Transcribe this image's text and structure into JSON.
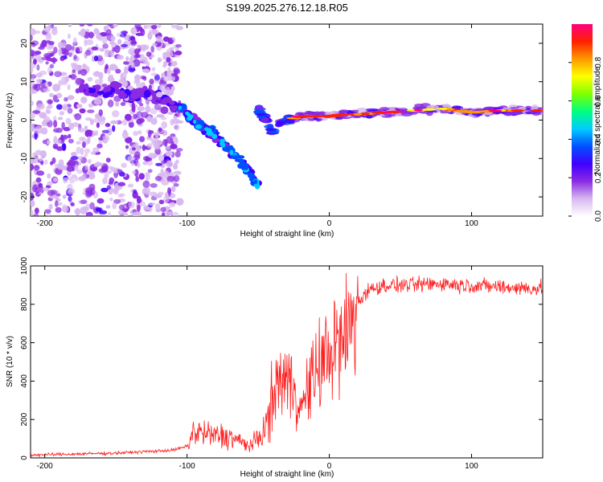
{
  "page_title": "S199.2025.276.12.18.R05",
  "chart_data": [
    {
      "type": "heatmap",
      "title": "S199.2025.276.12.18.R05",
      "xlabel": "Height of straight line (km)",
      "ylabel": "Frequency (Hz)",
      "xlim": [
        -210,
        150
      ],
      "ylim": [
        -25,
        25
      ],
      "xticks": [
        -200,
        -100,
        0,
        100
      ],
      "xtick_labels": [
        "-200",
        "-100",
        "0",
        "100"
      ],
      "yticks": [
        -20,
        -10,
        0,
        10,
        20
      ],
      "ytick_labels": [
        "-20",
        "-10",
        "0",
        "10",
        "20"
      ],
      "colorbar": {
        "label": "Normalized spectral amplitude",
        "range": [
          0,
          1
        ],
        "ticks": [
          0.0,
          0.2,
          0.4,
          0.6,
          0.8
        ],
        "tick_labels": [
          "0.0",
          "0.2",
          "0.4",
          "0.6",
          "0.8"
        ],
        "colormap": [
          "#ffffff",
          "#d8b8f0",
          "#8a2be2",
          "#4000ff",
          "#0050ff",
          "#00ccff",
          "#00ff80",
          "#80ff00",
          "#ffff00",
          "#ff9900",
          "#ff2000",
          "#ff0080"
        ]
      },
      "ridge": {
        "description_free_track": true,
        "x": [
          -175,
          -160,
          -150,
          -140,
          -130,
          -120,
          -110,
          -100,
          -95,
          -90,
          -85,
          -80,
          -75,
          -70,
          -65,
          -60,
          -55,
          -50
        ],
        "y": [
          8,
          7,
          8,
          6,
          7,
          6,
          4,
          2,
          0,
          -2,
          -3,
          -4,
          -6,
          -8,
          -10,
          -12,
          -14,
          -17
        ]
      },
      "secondary_track": {
        "x": [
          -50,
          -45,
          -40,
          -35,
          -30,
          -25,
          -20,
          -10,
          0,
          10,
          20,
          40,
          60,
          80,
          100,
          120,
          150
        ],
        "y": [
          3,
          0,
          -3,
          -1,
          0,
          0.5,
          1,
          1,
          1,
          1.5,
          1.5,
          2,
          2.5,
          3,
          2,
          2.5,
          2.5
        ]
      }
    },
    {
      "type": "line",
      "xlabel": "Height of straight line (km)",
      "ylabel": "SNR (10 * v/v)",
      "xlim": [
        -210,
        150
      ],
      "ylim": [
        0,
        1000
      ],
      "xticks": [
        -200,
        -100,
        0,
        100
      ],
      "xtick_labels": [
        "-200",
        "-100",
        "0",
        "100"
      ],
      "yticks": [
        0,
        200,
        400,
        600,
        800,
        1000
      ],
      "ytick_labels": [
        "0",
        "200",
        "400",
        "600",
        "800",
        "1000"
      ],
      "color": "#ff2020",
      "trend": {
        "x": [
          -210,
          -150,
          -110,
          -100,
          -95,
          -85,
          -70,
          -55,
          -45,
          -40,
          -35,
          -30,
          -25,
          -20,
          -15,
          -10,
          -5,
          0,
          5,
          10,
          15,
          20,
          25,
          30,
          40,
          60,
          80,
          90,
          100,
          120,
          150
        ],
        "y": [
          15,
          25,
          40,
          60,
          140,
          120,
          110,
          60,
          150,
          300,
          420,
          400,
          380,
          250,
          350,
          450,
          500,
          560,
          580,
          600,
          700,
          800,
          860,
          880,
          900,
          900,
          910,
          900,
          900,
          890,
          880
        ]
      }
    }
  ]
}
